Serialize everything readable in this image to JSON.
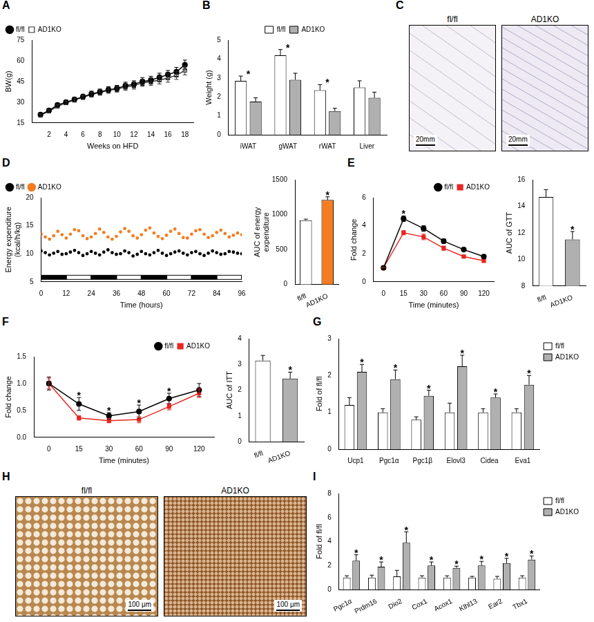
{
  "chart_data": [
    {
      "panel": "A",
      "type": "line",
      "x": [
        1,
        2,
        3,
        4,
        5,
        6,
        7,
        8,
        9,
        10,
        11,
        12,
        13,
        14,
        15,
        16,
        17,
        18
      ],
      "series": [
        {
          "name": "fl/fl",
          "color": "#000000",
          "marker": "circle",
          "values": [
            21,
            24,
            28,
            30,
            32,
            34,
            36,
            37.5,
            39,
            40,
            42,
            43,
            45,
            46,
            48,
            50,
            52,
            57
          ],
          "errors": [
            1,
            1,
            1.2,
            1.5,
            1.5,
            1.8,
            2,
            2,
            2.2,
            2.2,
            2.5,
            2.5,
            2.8,
            2.8,
            3,
            3,
            3.2,
            3.5
          ]
        },
        {
          "name": "AD1KO",
          "color": "#333333",
          "marker": "open_square",
          "values": [
            20.5,
            23.5,
            27,
            29.5,
            31.5,
            33.5,
            35.5,
            37,
            38.5,
            39.5,
            41,
            42,
            44,
            45,
            46,
            47.5,
            49.5,
            53
          ],
          "errors": [
            1,
            1,
            1.2,
            1.4,
            1.5,
            1.6,
            1.8,
            2,
            2,
            2.2,
            2.3,
            2.5,
            2.5,
            2.8,
            2.8,
            3,
            3,
            3.2
          ]
        }
      ],
      "x_label": "Weeks on HFD",
      "y_label": "BW(g)",
      "xlim": [
        0,
        19
      ],
      "xticks": [
        2,
        4,
        6,
        8,
        10,
        12,
        14,
        16,
        18
      ],
      "ylim": [
        15,
        75
      ],
      "yticks": [
        15,
        30,
        45,
        60,
        75
      ],
      "grid": false,
      "legend": "top-left"
    },
    {
      "panel": "B",
      "type": "bar",
      "categories": [
        "iWAT",
        "gWAT",
        "rWAT",
        "Liver"
      ],
      "series": [
        {
          "name": "fl/fl",
          "color": "#ffffff",
          "values": [
            2.85,
            4.2,
            2.35,
            2.5
          ],
          "errors": [
            0.25,
            0.3,
            0.3,
            0.35
          ]
        },
        {
          "name": "AD1KO",
          "color": "#b0b0b0",
          "values": [
            1.75,
            2.9,
            1.25,
            1.95
          ],
          "errors": [
            0.2,
            0.35,
            0.15,
            0.3
          ]
        }
      ],
      "significance": [
        "*",
        "*",
        "*",
        null
      ],
      "y_label": "Weight (g)",
      "ylim": [
        0,
        5
      ],
      "yticks": [
        0,
        1,
        2,
        3,
        4,
        5
      ],
      "grid": false,
      "legend": "top"
    },
    {
      "panel": "C",
      "type": "image",
      "images": [
        {
          "label": "fl/fl",
          "scale_bar": "20mm"
        },
        {
          "label": "AD1KO",
          "scale_bar": "20mm"
        }
      ]
    },
    {
      "panel": "D",
      "type": "scatter",
      "x": [
        0,
        2,
        4,
        6,
        8,
        10,
        12,
        14,
        16,
        18,
        20,
        22,
        24,
        26,
        28,
        30,
        32,
        34,
        36,
        38,
        40,
        42,
        44,
        46,
        48,
        50,
        52,
        54,
        56,
        58,
        60,
        62,
        64,
        66,
        68,
        70,
        72,
        74,
        76,
        78,
        80,
        82,
        84,
        86,
        88,
        90,
        92,
        94,
        96
      ],
      "series": [
        {
          "name": "fl/fl",
          "color": "#000000",
          "marker": "circle",
          "values": [
            10.5,
            10.2,
            9.8,
            10.1,
            10.4,
            9.9,
            10.0,
            10.3,
            10.6,
            10.2,
            9.7,
            10.0,
            10.4,
            10.1,
            9.8,
            10.3,
            10.7,
            10.2,
            9.9,
            10.0,
            10.5,
            10.2,
            9.6,
            9.9,
            10.4,
            10.0,
            9.8,
            10.2,
            10.6,
            10.1,
            9.7,
            10.0,
            10.3,
            10.5,
            10.1,
            9.8,
            10.2,
            10.4,
            10.0,
            9.7,
            10.1,
            10.5,
            10.2,
            9.9,
            10.0,
            10.4,
            10.3,
            10.1,
            10.0
          ]
        },
        {
          "name": "AD1KO",
          "color": "#f57c20",
          "marker": "circle",
          "values": [
            13.5,
            13.0,
            12.6,
            13.2,
            14.0,
            13.4,
            12.8,
            13.5,
            14.3,
            14.1,
            13.2,
            12.7,
            13.0,
            13.6,
            14.4,
            13.8,
            13.0,
            12.6,
            13.1,
            13.9,
            14.5,
            14.0,
            13.2,
            12.8,
            13.4,
            14.2,
            14.6,
            13.7,
            13.1,
            12.7,
            13.3,
            14.0,
            14.4,
            13.6,
            12.9,
            12.8,
            13.5,
            14.1,
            14.3,
            13.5,
            12.9,
            13.2,
            13.8,
            14.2,
            13.6,
            13.0,
            13.3,
            13.7,
            13.4
          ]
        }
      ],
      "light_periods": [
        [
          12,
          24
        ],
        [
          36,
          48
        ],
        [
          60,
          72
        ],
        [
          84,
          96
        ]
      ],
      "x_label": "Time (hours)",
      "y_label": "Energy expenditure (kcal/h/kg)",
      "xlim": [
        0,
        96
      ],
      "xticks": [
        0,
        12,
        24,
        36,
        48,
        60,
        72,
        84,
        96
      ],
      "ylim": [
        5,
        20
      ],
      "yticks": [
        5,
        10,
        15,
        20
      ],
      "grid": false,
      "legend": "top-left"
    },
    {
      "type": "bar",
      "categories": [
        "fl/fl",
        "AD1KO"
      ],
      "values": [
        920,
        1210
      ],
      "errors": [
        15,
        45
      ],
      "colors": [
        "#ffffff",
        "#f57c20"
      ],
      "significance": [
        null,
        "*"
      ],
      "y_label": "AUC of energy expenditure",
      "ylim": [
        0,
        1500
      ],
      "yticks": [
        0,
        500,
        1000,
        1500
      ],
      "grid": false
    },
    {
      "panel": "E",
      "type": "line",
      "categories": [
        0,
        15,
        30,
        60,
        90,
        120
      ],
      "series": [
        {
          "name": "fl/fl",
          "color": "#000000",
          "marker": "circle",
          "values": [
            1,
            4.5,
            3.8,
            2.9,
            2.3,
            1.8
          ],
          "errors": [
            0,
            0.2,
            0.2,
            0.15,
            0.1,
            0.1
          ]
        },
        {
          "name": "AD1KO",
          "color": "#e8251f",
          "marker": "square",
          "values": [
            1,
            3.5,
            3.2,
            2.4,
            1.8,
            1.5
          ],
          "errors": [
            0,
            0.15,
            0.2,
            0.15,
            0.1,
            0.1
          ]
        }
      ],
      "significance": [
        null,
        "*",
        null,
        null,
        null,
        null
      ],
      "x_label": "Time (minutes)",
      "y_label": "Fold change",
      "ylim": [
        0,
        6
      ],
      "yticks": [
        0,
        2,
        4,
        6
      ],
      "grid": false,
      "legend": "top-right"
    },
    {
      "type": "bar",
      "categories": [
        "fl/fl",
        "AD1KO"
      ],
      "values": [
        14.7,
        11.5
      ],
      "errors": [
        0.55,
        0.6
      ],
      "colors": [
        "#ffffff",
        "#b0b0b0"
      ],
      "significance": [
        null,
        "*"
      ],
      "y_label": "AUC of GTT",
      "ylim": [
        8,
        16
      ],
      "yticks": [
        8,
        10,
        12,
        14,
        16
      ],
      "grid": false
    },
    {
      "panel": "F",
      "type": "line",
      "categories": [
        0,
        15,
        30,
        60,
        90,
        120
      ],
      "series": [
        {
          "name": "fl/fl",
          "color": "#000000",
          "marker": "circle",
          "values": [
            1,
            0.62,
            0.4,
            0.48,
            0.72,
            0.88
          ],
          "errors": [
            0.12,
            0.12,
            0.06,
            0.12,
            0.1,
            0.12
          ]
        },
        {
          "name": "AD1KO",
          "color": "#e8251f",
          "marker": "square",
          "values": [
            1,
            0.36,
            0.31,
            0.33,
            0.57,
            0.82
          ],
          "errors": [
            0.1,
            0.04,
            0.04,
            0.06,
            0.06,
            0.08
          ]
        }
      ],
      "significance": [
        null,
        "*",
        "*",
        "*",
        "*",
        null
      ],
      "x_label": "Time (minutes)",
      "y_label": "Fold change",
      "ylim": [
        0,
        1.5
      ],
      "yticks": [
        {
          "value": 0,
          "label": "0.0"
        },
        {
          "value": 0.5,
          "label": "0.5"
        },
        {
          "value": 1,
          "label": "1.0"
        },
        {
          "value": 1.5,
          "label": "1.5"
        }
      ],
      "grid": false,
      "legend": "top-right"
    },
    {
      "type": "bar",
      "categories": [
        "fl/fl",
        "AD1KO"
      ],
      "values": [
        3.15,
        2.45
      ],
      "errors": [
        0.2,
        0.25
      ],
      "colors": [
        "#ffffff",
        "#b0b0b0"
      ],
      "significance": [
        null,
        "*"
      ],
      "y_label": "AUC of ITT",
      "ylim": [
        0,
        4
      ],
      "yticks": [
        0,
        1,
        2,
        3,
        4
      ],
      "grid": false
    },
    {
      "panel": "G",
      "type": "bar",
      "categories": [
        "Ucp1",
        "Pgc1α",
        "Pgc1β",
        "Elovl3",
        "Cidea",
        "Eva1"
      ],
      "series": [
        {
          "name": "fl/fl",
          "color": "#ffffff",
          "values": [
            1.2,
            1.0,
            0.8,
            1.0,
            1.0,
            1.0
          ],
          "errors": [
            0.2,
            0.1,
            0.08,
            0.25,
            0.1,
            0.1
          ]
        },
        {
          "name": "AD1KO",
          "color": "#b0b0b0",
          "values": [
            2.1,
            1.9,
            1.45,
            2.25,
            1.4,
            1.75
          ],
          "errors": [
            0.2,
            0.25,
            0.15,
            0.3,
            0.1,
            0.25
          ],
          "significance": [
            "*",
            "*",
            "*",
            "*",
            "*",
            "*"
          ]
        }
      ],
      "y_label": "Fold of fl/fl",
      "ylim": [
        0,
        3
      ],
      "yticks": [
        0,
        1,
        2,
        3
      ],
      "grid": false,
      "legend": "right"
    },
    {
      "panel": "H",
      "type": "image",
      "images": [
        {
          "label": "fl/fl",
          "scale_bar": "100 μm"
        },
        {
          "label": "AD1KO",
          "scale_bar": "100 μm"
        }
      ]
    },
    {
      "panel": "I",
      "type": "bar",
      "categories": [
        "Pgc1α",
        "Prdm16",
        "Dio2",
        "Cox1",
        "Acox1",
        "Klhl13",
        "Ear2",
        "Tbx1"
      ],
      "series": [
        {
          "name": "fl/fl",
          "color": "#ffffff",
          "values": [
            1.0,
            1.0,
            1.1,
            1.0,
            1.0,
            1.0,
            0.9,
            1.0
          ],
          "errors": [
            0.15,
            0.2,
            0.5,
            0.15,
            0.15,
            0.1,
            0.2,
            0.15
          ]
        },
        {
          "name": "AD1KO",
          "color": "#b0b0b0",
          "values": [
            2.4,
            1.9,
            3.9,
            2.0,
            1.8,
            2.0,
            2.2,
            2.5
          ],
          "errors": [
            0.5,
            0.4,
            0.9,
            0.3,
            0.15,
            0.35,
            0.4,
            0.3
          ],
          "significance": [
            "*",
            "*",
            "*",
            "*",
            "*",
            "*",
            "*",
            "*"
          ]
        }
      ],
      "y_label": "Fold of fl/fl",
      "ylim": [
        0,
        8
      ],
      "yticks": [
        0,
        2,
        4,
        6,
        8
      ],
      "grid": false,
      "legend": "right"
    }
  ]
}
